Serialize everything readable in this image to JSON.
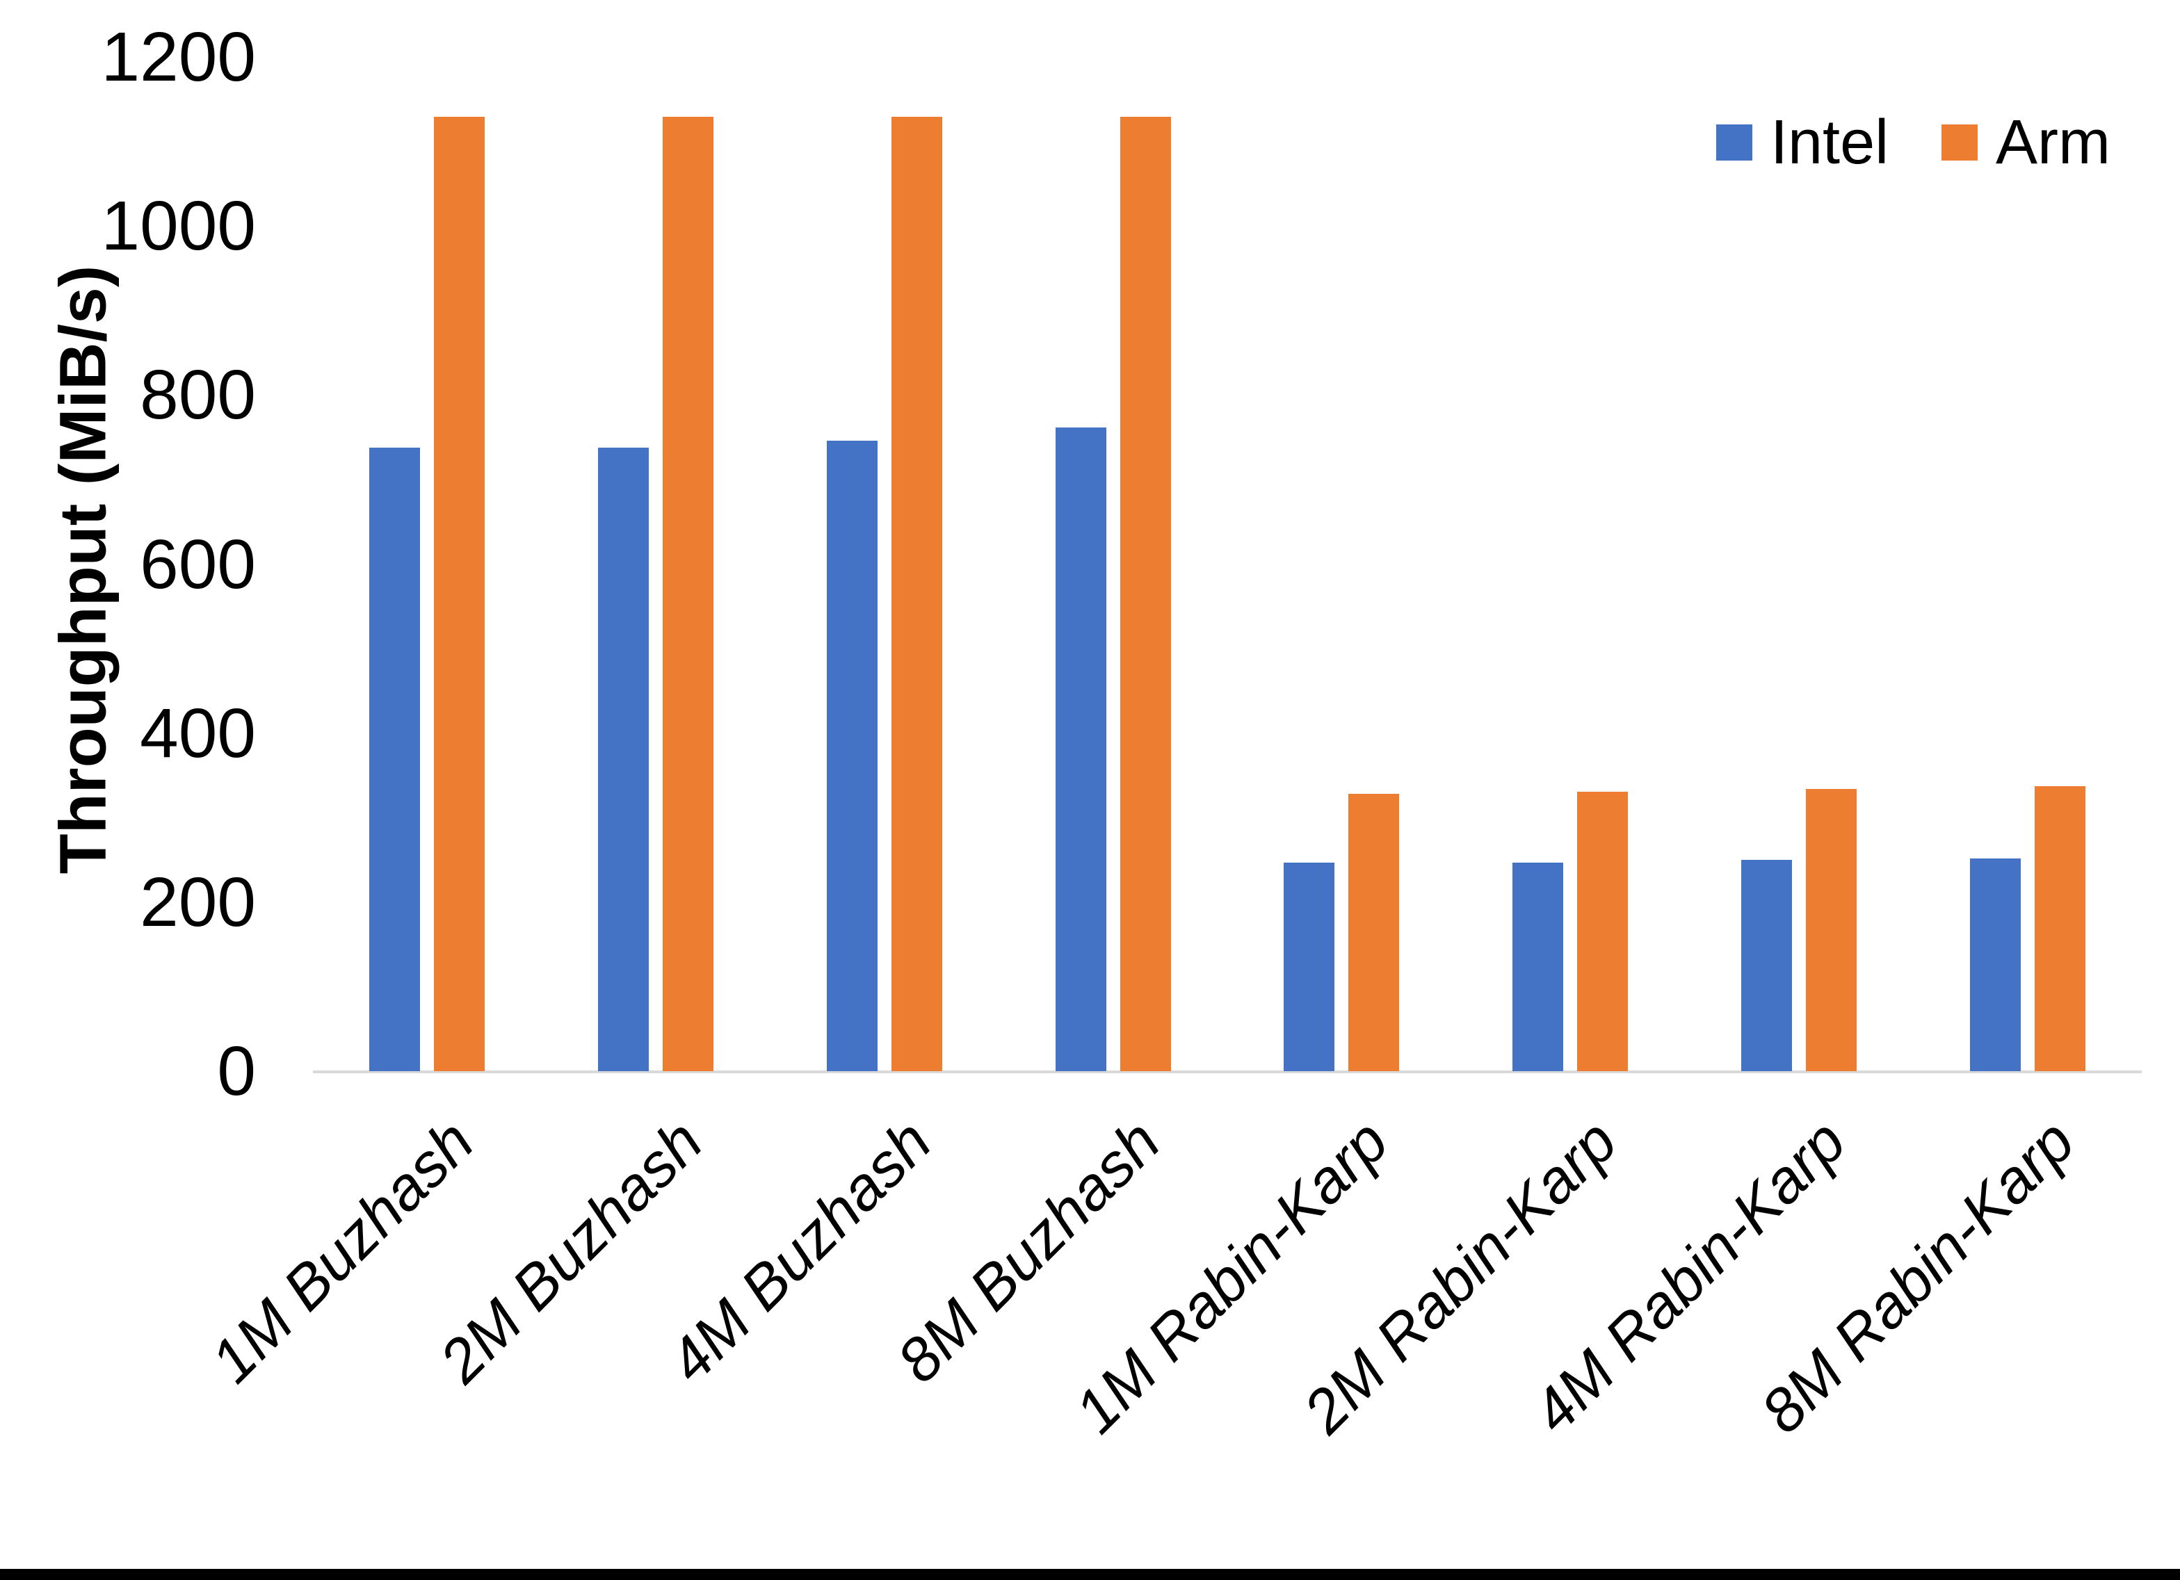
{
  "chart_data": {
    "type": "bar",
    "title": "",
    "xlabel": "",
    "ylabel": "Throughput (MiB/s)",
    "categories": [
      "1M Buzhash",
      "2M Buzhash",
      "4M Buzhash",
      "8M Buzhash",
      "1M Rabin-Karp",
      "2M Rabin-Karp",
      "4M Rabin-Karp",
      "8M Rabin-Karp"
    ],
    "series": [
      {
        "name": "Intel",
        "color": "#4472C4",
        "values": [
          738,
          738,
          746,
          762,
          247,
          247,
          250,
          252
        ]
      },
      {
        "name": "Arm",
        "color": "#ED7D31",
        "values": [
          1129,
          1129,
          1129,
          1129,
          328,
          331,
          334,
          337
        ]
      }
    ],
    "ylim": [
      0,
      1200
    ],
    "yticks": [
      0,
      200,
      400,
      600,
      800,
      1000,
      1200
    ],
    "grid": false,
    "legend_position": "top-right"
  },
  "legend": {
    "items": [
      {
        "label": "Intel",
        "color": "#4472C4"
      },
      {
        "label": "Arm",
        "color": "#ED7D31"
      }
    ]
  },
  "colors": {
    "background": "#FFFFFF",
    "text": "#000000",
    "axis_line": "#D9D9D9",
    "bottom_border": "#000000"
  }
}
